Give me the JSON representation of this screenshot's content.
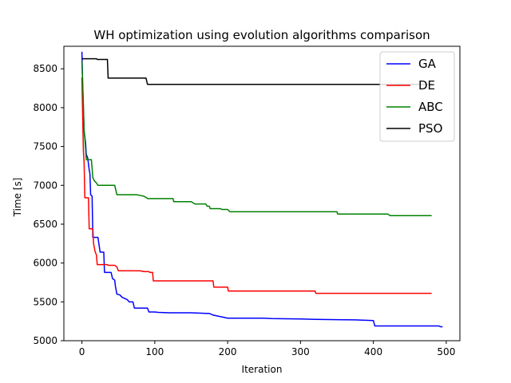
{
  "chart_data": {
    "type": "line",
    "title": "WH optimization using evolution algorithms comparison",
    "xlabel": "Iteration",
    "ylabel": "Time [s]",
    "xlim": [
      -24.75,
      518.75
    ],
    "ylim": [
      5000,
      8790
    ],
    "xticks": [
      0,
      100,
      200,
      300,
      400,
      500
    ],
    "yticks": [
      5000,
      5500,
      6000,
      6500,
      7000,
      7500,
      8000,
      8500
    ],
    "grid": false,
    "legend_position": "top-right",
    "series": [
      {
        "name": "GA",
        "color": "#0000ff",
        "points": [
          [
            0,
            8720
          ],
          [
            1,
            8300
          ],
          [
            2,
            8000
          ],
          [
            3,
            7700
          ],
          [
            5,
            7550
          ],
          [
            6,
            7400
          ],
          [
            8,
            7350
          ],
          [
            10,
            7200
          ],
          [
            11,
            7150
          ],
          [
            12,
            6880
          ],
          [
            13,
            6870
          ],
          [
            14,
            6860
          ],
          [
            15,
            6330
          ],
          [
            20,
            6330
          ],
          [
            22,
            6330
          ],
          [
            25,
            6140
          ],
          [
            30,
            6140
          ],
          [
            31,
            5880
          ],
          [
            40,
            5880
          ],
          [
            42,
            5800
          ],
          [
            45,
            5780
          ],
          [
            46,
            5700
          ],
          [
            48,
            5600
          ],
          [
            52,
            5590
          ],
          [
            55,
            5560
          ],
          [
            62,
            5530
          ],
          [
            65,
            5500
          ],
          [
            70,
            5500
          ],
          [
            72,
            5420
          ],
          [
            90,
            5420
          ],
          [
            92,
            5370
          ],
          [
            100,
            5370
          ],
          [
            105,
            5365
          ],
          [
            120,
            5360
          ],
          [
            150,
            5360
          ],
          [
            175,
            5350
          ],
          [
            180,
            5330
          ],
          [
            195,
            5300
          ],
          [
            200,
            5290
          ],
          [
            250,
            5290
          ],
          [
            260,
            5285
          ],
          [
            300,
            5280
          ],
          [
            320,
            5275
          ],
          [
            360,
            5270
          ],
          [
            375,
            5268
          ],
          [
            400,
            5260
          ],
          [
            402,
            5190
          ],
          [
            490,
            5190
          ],
          [
            492,
            5180
          ],
          [
            495,
            5180
          ]
        ]
      },
      {
        "name": "DE",
        "color": "#ff0000",
        "points": [
          [
            0,
            8390
          ],
          [
            2,
            7450
          ],
          [
            3,
            7300
          ],
          [
            4,
            6840
          ],
          [
            9,
            6840
          ],
          [
            10,
            6440
          ],
          [
            15,
            6440
          ],
          [
            16,
            6250
          ],
          [
            17,
            6200
          ],
          [
            18,
            6150
          ],
          [
            20,
            6100
          ],
          [
            21,
            5980
          ],
          [
            35,
            5980
          ],
          [
            36,
            5970
          ],
          [
            45,
            5970
          ],
          [
            48,
            5950
          ],
          [
            50,
            5900
          ],
          [
            80,
            5900
          ],
          [
            85,
            5890
          ],
          [
            92,
            5890
          ],
          [
            93,
            5880
          ],
          [
            97,
            5880
          ],
          [
            98,
            5770
          ],
          [
            180,
            5770
          ],
          [
            181,
            5690
          ],
          [
            200,
            5690
          ],
          [
            201,
            5640
          ],
          [
            320,
            5640
          ],
          [
            321,
            5610
          ],
          [
            480,
            5610
          ]
        ]
      },
      {
        "name": "ABC",
        "color": "#008000",
        "points": [
          [
            0,
            8600
          ],
          [
            2,
            8050
          ],
          [
            3,
            7700
          ],
          [
            4,
            7600
          ],
          [
            6,
            7330
          ],
          [
            13,
            7330
          ],
          [
            15,
            7100
          ],
          [
            17,
            7060
          ],
          [
            20,
            7030
          ],
          [
            22,
            7000
          ],
          [
            45,
            7000
          ],
          [
            48,
            6880
          ],
          [
            75,
            6880
          ],
          [
            80,
            6870
          ],
          [
            85,
            6860
          ],
          [
            89,
            6840
          ],
          [
            90,
            6830
          ],
          [
            125,
            6830
          ],
          [
            126,
            6790
          ],
          [
            150,
            6790
          ],
          [
            155,
            6760
          ],
          [
            170,
            6760
          ],
          [
            172,
            6730
          ],
          [
            175,
            6730
          ],
          [
            176,
            6700
          ],
          [
            190,
            6700
          ],
          [
            192,
            6690
          ],
          [
            200,
            6690
          ],
          [
            203,
            6660
          ],
          [
            350,
            6660
          ],
          [
            351,
            6630
          ],
          [
            420,
            6630
          ],
          [
            423,
            6610
          ],
          [
            480,
            6610
          ]
        ]
      },
      {
        "name": "PSO",
        "color": "#000000",
        "points": [
          [
            0,
            8630
          ],
          [
            20,
            8630
          ],
          [
            21,
            8620
          ],
          [
            35,
            8620
          ],
          [
            36,
            8380
          ],
          [
            88,
            8380
          ],
          [
            90,
            8300
          ],
          [
            480,
            8300
          ]
        ]
      }
    ]
  }
}
